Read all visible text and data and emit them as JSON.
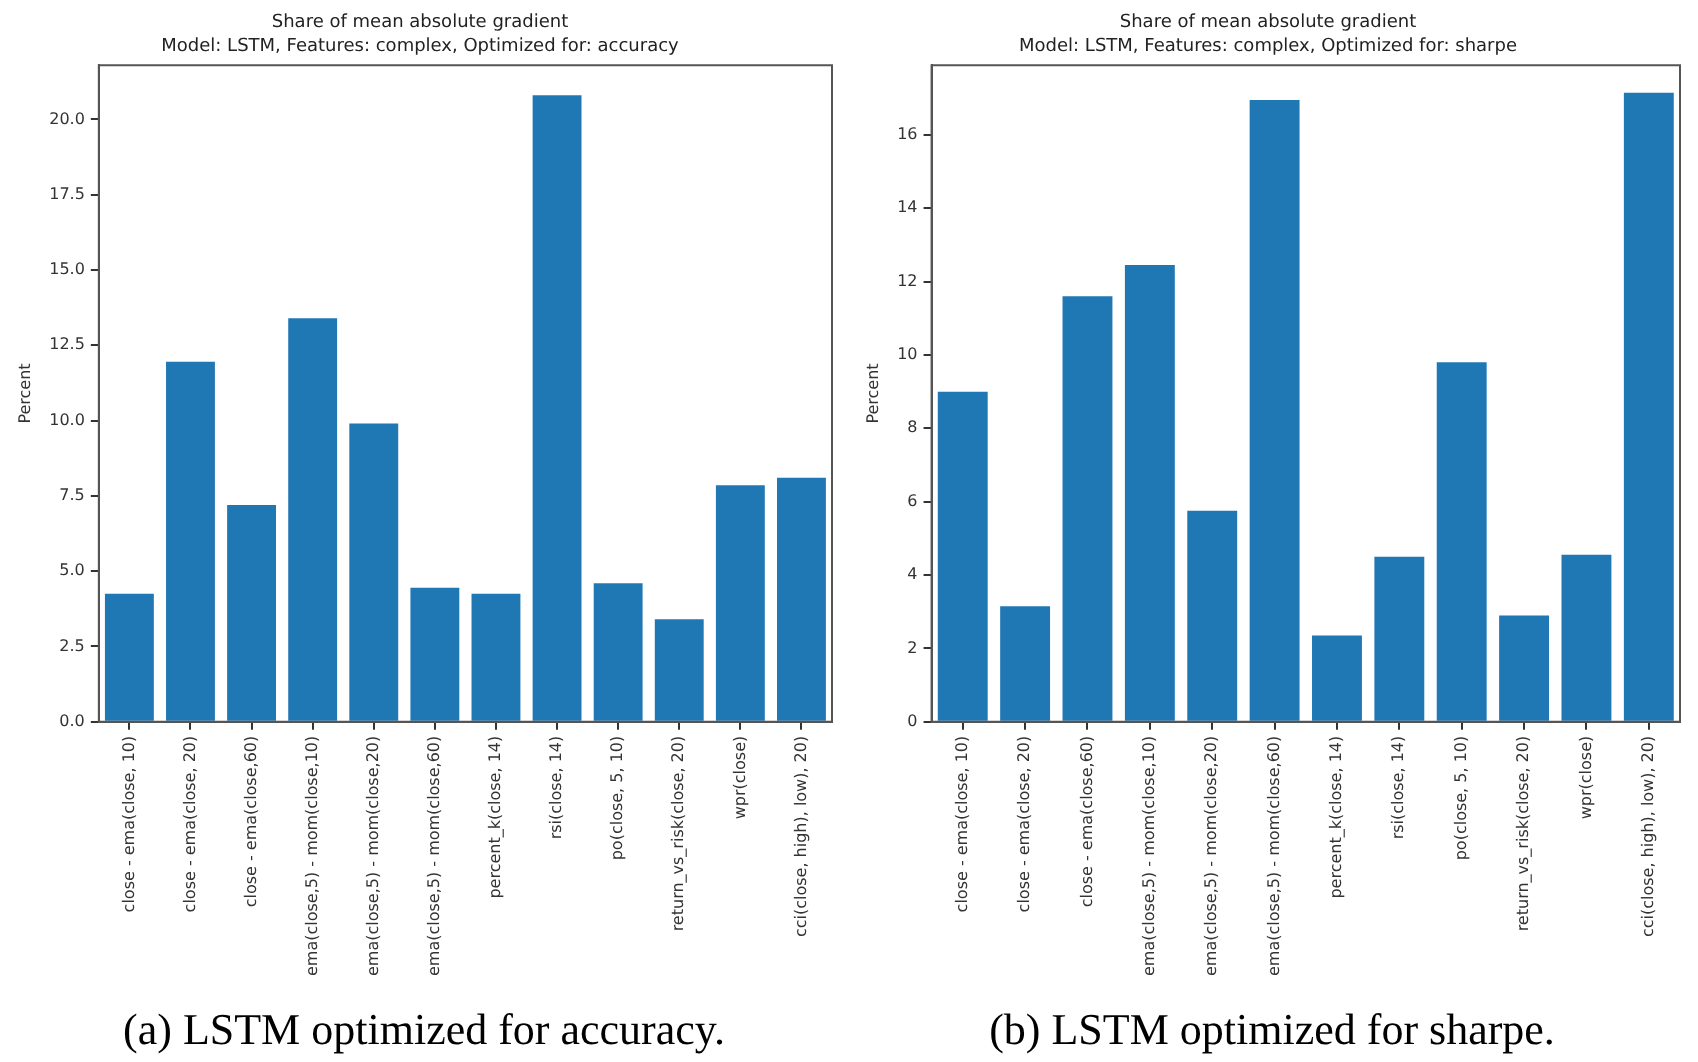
{
  "chart_data": [
    {
      "type": "bar",
      "title": "Share of mean absolute gradient",
      "subtitle": "Model: LSTM, Features: complex, Optimized for: accuracy",
      "ylabel": "Percent",
      "categories": [
        "close - ema(close, 10)",
        "close - ema(close, 20)",
        "close - ema(close,60)",
        "ema(close,5) - mom(close,10)",
        "ema(close,5) - mom(close,20)",
        "ema(close,5) - mom(close,60)",
        "percent_k(close, 14)",
        "rsi(close, 14)",
        "po(close, 5, 10)",
        "return_vs_risk(close, 20)",
        "wpr(close)",
        "cci(close, high), low), 20)"
      ],
      "values": [
        4.25,
        11.95,
        7.2,
        13.4,
        9.9,
        4.45,
        4.25,
        20.8,
        4.6,
        3.4,
        7.85,
        8.1
      ],
      "color": "#1f77b4",
      "ylim": [
        0,
        21.8
      ],
      "yticks": [
        {
          "value": 0,
          "label": "0.0"
        },
        {
          "value": 2.5,
          "label": "2.5"
        },
        {
          "value": 5,
          "label": "5.0"
        },
        {
          "value": 7.5,
          "label": "7.5"
        },
        {
          "value": 10,
          "label": "10.0"
        },
        {
          "value": 12.5,
          "label": "12.5"
        },
        {
          "value": 15,
          "label": "15.0"
        },
        {
          "value": 17.5,
          "label": "17.5"
        },
        {
          "value": 20,
          "label": "20.0"
        }
      ],
      "grid": false,
      "legend": false,
      "annotations": [
        "(a) LSTM optimized for accuracy."
      ]
    },
    {
      "type": "bar",
      "title": "Share of mean absolute gradient",
      "subtitle": "Model: LSTM, Features: complex, Optimized for: sharpe",
      "ylabel": "Percent",
      "categories": [
        "close - ema(close, 10)",
        "close - ema(close, 20)",
        "close - ema(close,60)",
        "ema(close,5) - mom(close,10)",
        "ema(close,5) - mom(close,20)",
        "ema(close,5) - mom(close,60)",
        "percent_k(close, 14)",
        "rsi(close, 14)",
        "po(close, 5, 10)",
        "return_vs_risk(close, 20)",
        "wpr(close)",
        "cci(close, high), low), 20)"
      ],
      "values": [
        9.0,
        3.15,
        11.6,
        12.45,
        5.75,
        16.95,
        2.35,
        4.5,
        9.8,
        2.9,
        4.55,
        17.15
      ],
      "color": "#1f77b4",
      "ylim": [
        0,
        17.9
      ],
      "yticks": [
        0,
        2,
        4,
        6,
        8,
        10,
        12,
        14,
        16
      ],
      "grid": false,
      "legend": false,
      "annotations": [
        "(b) LSTM optimized for sharpe."
      ]
    }
  ]
}
